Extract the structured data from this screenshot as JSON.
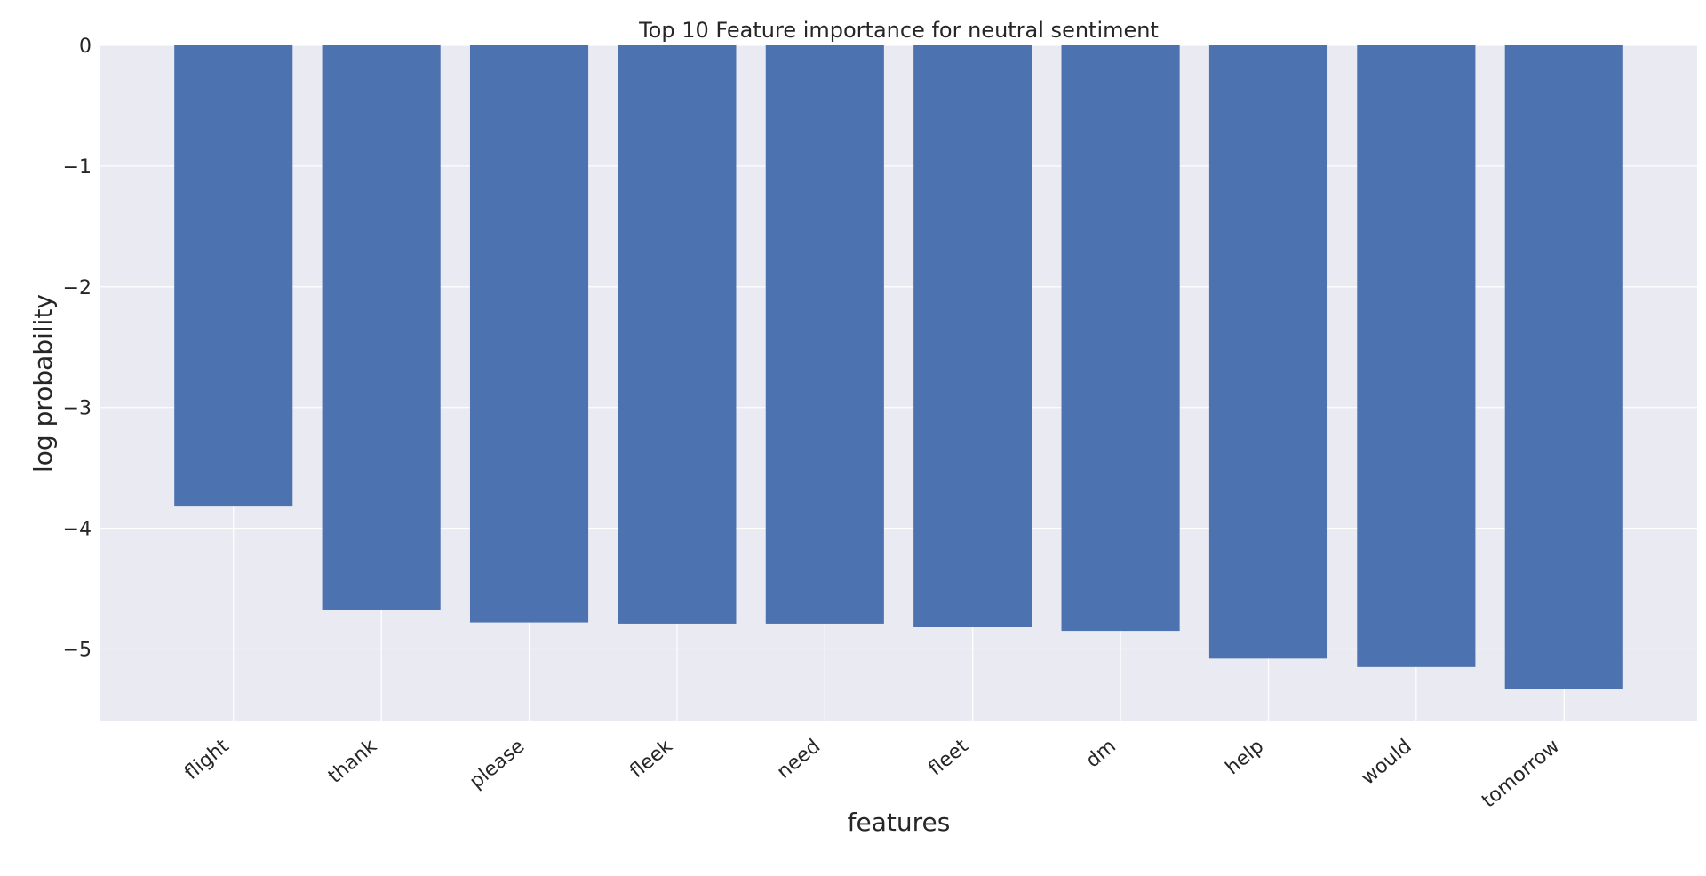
{
  "chart_data": {
    "type": "bar",
    "title": "Top 10 Feature importance for neutral sentiment",
    "xlabel": "features",
    "ylabel": "log probability",
    "categories": [
      "flight",
      "thank",
      "please",
      "fleek",
      "need",
      "fleet",
      "dm",
      "help",
      "would",
      "tomorrow"
    ],
    "values": [
      -3.82,
      -4.68,
      -4.78,
      -4.79,
      -4.79,
      -4.82,
      -4.85,
      -5.08,
      -5.15,
      -5.33
    ],
    "ylim": [
      -5.6,
      0
    ],
    "yticks": [
      0,
      -1,
      -2,
      -3,
      -4,
      -5
    ],
    "ytick_labels": [
      "0",
      "−1",
      "−2",
      "−3",
      "−4",
      "−5"
    ],
    "grid": true,
    "colors": {
      "bar": "#4c72b0",
      "plot_background": "#eaeaf2",
      "grid": "#ffffff",
      "text": "#262626"
    }
  }
}
